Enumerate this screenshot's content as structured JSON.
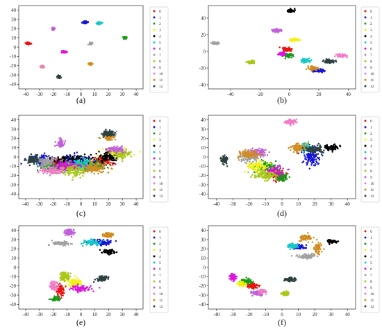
{
  "figure": {
    "type": "multi-panel-scatter",
    "class_colors": [
      "#e8140f",
      "#1414d8",
      "#169a16",
      "#f2f20e",
      "#000000",
      "#14c8c8",
      "#dc14dc",
      "#a0a0a0",
      "#a8c814",
      "#c060d8",
      "#f07cc8",
      "#d08c20",
      "#2c4040"
    ],
    "legend_labels": [
      "0",
      "1",
      "2",
      "3",
      "4",
      "5",
      "6",
      "7",
      "8",
      "9",
      "10",
      "11",
      "12"
    ]
  },
  "chart_data": [
    {
      "panel": "a",
      "type": "scatter",
      "caption": "(a)",
      "xlim": [
        -45,
        45
      ],
      "ylim": [
        -45,
        45
      ],
      "xticks": [
        -40,
        -30,
        -20,
        -10,
        0,
        10,
        20,
        30,
        40
      ],
      "yticks": [
        -40,
        -30,
        -20,
        -10,
        0,
        10,
        20,
        30,
        40
      ],
      "series": [
        {
          "label": "0",
          "clusters": [
            [
              -38,
              4,
              1.5,
              1
            ]
          ]
        },
        {
          "label": "1",
          "clusters": [
            [
              3,
              27,
              1.8,
              1
            ]
          ]
        },
        {
          "label": "2",
          "clusters": [
            [
              32,
              10,
              1.5,
              1.2
            ]
          ]
        },
        {
          "label": "3",
          "clusters": [
            [
              7,
              -18,
              1.2,
              1
            ]
          ]
        },
        {
          "label": "4",
          "clusters": [
            [
              -16,
              -32,
              1,
              1
            ]
          ]
        },
        {
          "label": "5",
          "clusters": [
            [
              13,
              26,
              1.5,
              1
            ]
          ]
        },
        {
          "label": "6",
          "clusters": [
            [
              -12,
              -5,
              1.5,
              1
            ]
          ]
        },
        {
          "label": "7",
          "clusters": [
            [
              -16,
              -32,
              1,
              1.2
            ],
            [
              7,
              4,
              1,
              1.2
            ]
          ]
        },
        {
          "label": "8",
          "clusters": [
            [
              -28,
              -21,
              1.5,
              1
            ]
          ]
        },
        {
          "label": "9",
          "clusters": [
            [
              -20,
              20,
              1,
              1.2
            ]
          ]
        },
        {
          "label": "10",
          "clusters": [
            [
              -28,
              -21,
              1,
              1
            ]
          ]
        },
        {
          "label": "11",
          "clusters": [
            [
              7,
              -18,
              1,
              1
            ]
          ]
        },
        {
          "label": "12",
          "clusters": [
            [
              -16,
              -32,
              1,
              1.2
            ]
          ]
        }
      ]
    },
    {
      "panel": "b",
      "type": "scatter",
      "caption": "(b)",
      "xlim": [
        -55,
        45
      ],
      "ylim": [
        -45,
        55
      ],
      "xticks": [
        -40,
        -20,
        0,
        20,
        40
      ],
      "yticks": [
        -40,
        -20,
        0,
        20,
        40
      ],
      "series": [
        {
          "label": "0",
          "clusters": [
            [
              -2,
              2,
              3,
              2
            ]
          ]
        },
        {
          "label": "1",
          "clusters": [
            [
              20,
              -23,
              3,
              2
            ]
          ]
        },
        {
          "label": "2",
          "clusters": [
            [
              -1,
              -5,
              2.5,
              2
            ]
          ]
        },
        {
          "label": "3",
          "clusters": [
            [
              4,
              14,
              3,
              1.5
            ]
          ]
        },
        {
          "label": "4",
          "clusters": [
            [
              1,
              49,
              2,
              2
            ]
          ]
        },
        {
          "label": "5",
          "clusters": [
            [
              11,
              -11,
              2.5,
              2
            ]
          ]
        },
        {
          "label": "6",
          "clusters": [
            [
              -5,
              -3,
              2,
              2
            ]
          ]
        },
        {
          "label": "7",
          "clusters": [
            [
              -50,
              10,
              2.5,
              1
            ]
          ]
        },
        {
          "label": "8",
          "clusters": [
            [
              -26,
              -13,
              2.5,
              1.5
            ]
          ]
        },
        {
          "label": "9",
          "clusters": [
            [
              -9,
              25,
              3,
              1.5
            ]
          ]
        },
        {
          "label": "10",
          "clusters": [
            [
              35,
              -5,
              3,
              1.5
            ]
          ]
        },
        {
          "label": "11",
          "clusters": [
            [
              16,
              -20,
              3,
              2.5
            ]
          ]
        },
        {
          "label": "12",
          "clusters": [
            [
              27,
              -12,
              3,
              2
            ]
          ]
        }
      ]
    },
    {
      "panel": "c",
      "type": "scatter",
      "caption": "(c)",
      "xlim": [
        -45,
        45
      ],
      "ylim": [
        -45,
        45
      ],
      "xticks": [
        -40,
        -30,
        -20,
        -10,
        0,
        10,
        20,
        30,
        40
      ],
      "yticks": [
        -40,
        -30,
        -20,
        -10,
        0,
        10,
        20,
        30,
        40
      ],
      "series": [
        {
          "label": "0",
          "clusters": [
            [
              -15,
              -8,
              10,
              6
            ],
            [
              15,
              -5,
              8,
              5
            ]
          ]
        },
        {
          "label": "1",
          "clusters": [
            [
              -30,
              -3,
              8,
              5
            ],
            [
              -5,
              -5,
              10,
              6
            ]
          ]
        },
        {
          "label": "2",
          "clusters": [
            [
              -20,
              -12,
              8,
              5
            ],
            [
              10,
              -10,
              8,
              5
            ]
          ]
        },
        {
          "label": "3",
          "clusters": [
            [
              25,
              5,
              8,
              4
            ]
          ]
        },
        {
          "label": "4",
          "clusters": [
            [
              -5,
              -3,
              12,
              5
            ],
            [
              20,
              0,
              6,
              4
            ]
          ]
        },
        {
          "label": "5",
          "clusters": [
            [
              0,
              -8,
              10,
              6
            ]
          ]
        },
        {
          "label": "6",
          "clusters": [
            [
              -10,
              -10,
              10,
              5
            ]
          ]
        },
        {
          "label": "7",
          "clusters": [
            [
              22,
              24,
              4,
              3
            ],
            [
              -25,
              -5,
              6,
              4
            ]
          ]
        },
        {
          "label": "8",
          "clusters": [
            [
              -5,
              -15,
              8,
              5
            ],
            [
              30,
              3,
              6,
              4
            ]
          ]
        },
        {
          "label": "9",
          "clusters": [
            [
              -15,
              15,
              2,
              4
            ],
            [
              25,
              8,
              6,
              3
            ]
          ]
        },
        {
          "label": "10",
          "clusters": [
            [
              -20,
              -15,
              8,
              4
            ]
          ]
        },
        {
          "label": "11",
          "clusters": [
            [
              20,
              22,
              4,
              3
            ],
            [
              10,
              -12,
              8,
              5
            ]
          ]
        },
        {
          "label": "12",
          "clusters": [
            [
              -35,
              -3,
              4,
              4
            ],
            [
              20,
              25,
              4,
              3
            ]
          ]
        }
      ]
    },
    {
      "panel": "d",
      "type": "scatter",
      "caption": "(d)",
      "xlim": [
        -45,
        45
      ],
      "ylim": [
        -45,
        45
      ],
      "xticks": [
        -40,
        -30,
        -20,
        -10,
        0,
        10,
        20,
        30,
        40
      ],
      "yticks": [
        -40,
        -30,
        -20,
        -10,
        0,
        10,
        20,
        30,
        40
      ],
      "series": [
        {
          "label": "0",
          "clusters": [
            [
              -2,
              -20,
              4,
              5
            ]
          ]
        },
        {
          "label": "1",
          "clusters": [
            [
              18,
              0,
              5,
              8
            ]
          ]
        },
        {
          "label": "2",
          "clusters": [
            [
              -8,
              -10,
              6,
              6
            ],
            [
              0,
              -22,
              3,
              4
            ]
          ]
        },
        {
          "label": "3",
          "clusters": [
            [
              -15,
              -10,
              6,
              5
            ]
          ]
        },
        {
          "label": "4",
          "clusters": [
            [
              30,
              10,
              4,
              3
            ]
          ]
        },
        {
          "label": "5",
          "clusters": [
            [
              14,
              10,
              4,
              4
            ]
          ]
        },
        {
          "label": "6",
          "clusters": [
            [
              -5,
              -15,
              5,
              5
            ]
          ]
        },
        {
          "label": "7",
          "clusters": [
            [
              -20,
              0,
              6,
              5
            ]
          ]
        },
        {
          "label": "8",
          "clusters": [
            [
              -10,
              -20,
              6,
              5
            ]
          ]
        },
        {
          "label": "9",
          "clusters": [
            [
              -15,
              5,
              6,
              4
            ]
          ]
        },
        {
          "label": "10",
          "clusters": [
            [
              5,
              38,
              3,
              2
            ]
          ]
        },
        {
          "label": "11",
          "clusters": [
            [
              -20,
              3,
              6,
              4
            ],
            [
              10,
              10,
              4,
              4
            ]
          ]
        },
        {
          "label": "12",
          "clusters": [
            [
              -35,
              -3,
              2,
              4
            ],
            [
              20,
              8,
              6,
              4
            ]
          ]
        }
      ]
    },
    {
      "panel": "e",
      "type": "scatter",
      "caption": "(e)",
      "xlim": [
        -45,
        45
      ],
      "ylim": [
        -45,
        45
      ],
      "xticks": [
        -40,
        -30,
        -20,
        -10,
        0,
        10,
        20,
        30,
        40
      ],
      "yticks": [
        -40,
        -30,
        -20,
        -10,
        0,
        10,
        20,
        30,
        40
      ],
      "series": [
        {
          "label": "0",
          "clusters": [
            [
              -15,
              -25,
              3,
              5
            ]
          ]
        },
        {
          "label": "1",
          "clusters": [
            [
              15,
              27,
              8,
              3
            ]
          ]
        },
        {
          "label": "2",
          "clusters": [
            [
              -18,
              -34,
              3,
              2
            ]
          ]
        },
        {
          "label": "3",
          "clusters": [
            [
              -5,
              -17,
              5,
              4
            ]
          ]
        },
        {
          "label": "4",
          "clusters": [
            [
              20,
              17,
              4,
              2
            ]
          ]
        },
        {
          "label": "5",
          "clusters": [
            [
              8,
              27,
              6,
              3
            ]
          ]
        },
        {
          "label": "6",
          "clusters": [
            [
              0,
              -23,
              6,
              3
            ]
          ]
        },
        {
          "label": "7",
          "clusters": [
            [
              -15,
              26,
              6,
              2
            ]
          ]
        },
        {
          "label": "8",
          "clusters": [
            [
              -12,
              -10,
              4,
              4
            ]
          ]
        },
        {
          "label": "9",
          "clusters": [
            [
              -8,
              38,
              3,
              3
            ]
          ]
        },
        {
          "label": "10",
          "clusters": [
            [
              -20,
              -20,
              3,
              4
            ]
          ]
        },
        {
          "label": "11",
          "clusters": [
            [
              20,
              35,
              4,
              2
            ]
          ]
        },
        {
          "label": "12",
          "clusters": [
            [
              15,
              -12,
              4,
              3
            ]
          ]
        }
      ]
    },
    {
      "panel": "f",
      "type": "scatter",
      "caption": "(f)",
      "xlim": [
        -45,
        45
      ],
      "ylim": [
        -45,
        45
      ],
      "xticks": [
        -40,
        -30,
        -20,
        -10,
        0,
        10,
        20,
        30,
        40
      ],
      "yticks": [
        -40,
        -30,
        -20,
        -10,
        0,
        10,
        20,
        30,
        40
      ],
      "series": [
        {
          "label": "0",
          "clusters": [
            [
              -18,
              -20,
              3,
              2.5
            ]
          ]
        },
        {
          "label": "1",
          "clusters": [
            [
              10,
              22,
              3,
              2
            ]
          ]
        },
        {
          "label": "2",
          "clusters": [
            [
              -22,
              -15,
              3,
              2.5
            ]
          ]
        },
        {
          "label": "3",
          "clusters": [
            [
              -25,
              -18,
              2,
              2
            ]
          ]
        },
        {
          "label": "4",
          "clusters": [
            [
              30,
              28,
              3,
              2
            ]
          ]
        },
        {
          "label": "5",
          "clusters": [
            [
              7,
              23,
              3,
              2
            ]
          ]
        },
        {
          "label": "6",
          "clusters": [
            [
              -30,
              -10,
              2,
              3
            ]
          ]
        },
        {
          "label": "7",
          "clusters": [
            [
              15,
              12,
              5,
              2
            ]
          ]
        },
        {
          "label": "8",
          "clusters": [
            [
              2,
              -28,
              2,
              2
            ]
          ]
        },
        {
          "label": "9",
          "clusters": [
            [
              -15,
              -28,
              3,
              2
            ]
          ]
        },
        {
          "label": "10",
          "clusters": [
            [
              -12,
              -26,
              2,
              2
            ]
          ]
        },
        {
          "label": "11",
          "clusters": [
            [
              15,
              32,
              3,
              3
            ],
            [
              22,
              20,
              2,
              6
            ]
          ]
        },
        {
          "label": "12",
          "clusters": [
            [
              5,
              -13,
              3,
              2
            ]
          ]
        }
      ]
    }
  ]
}
